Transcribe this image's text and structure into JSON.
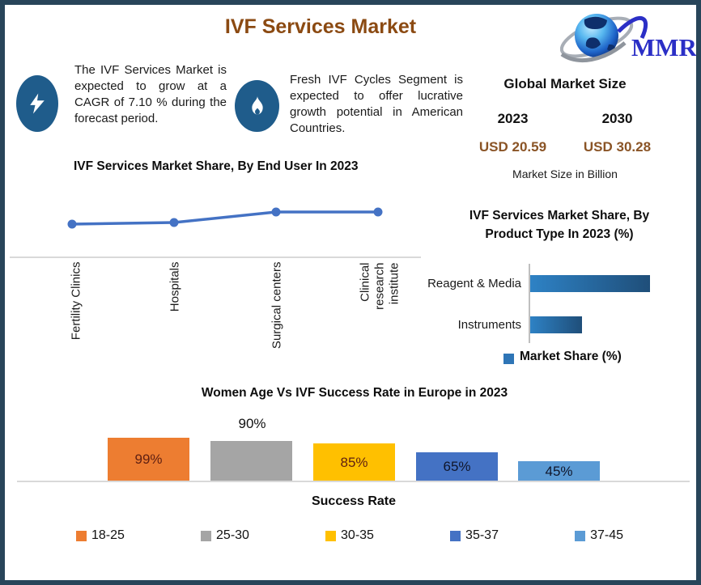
{
  "colors": {
    "border": "#28455A",
    "title_brown": "#8B4A12",
    "usd_value_brown": "#8A5426",
    "callout_icon_bg": "#1F5C8B",
    "line_blue": "#4472C4",
    "product_bar_gradient_start": "#2E82C5",
    "product_bar_gradient_end": "#1F4E79",
    "product_legend_square": "#2E75B6",
    "axis_gray": "#D9D9D9",
    "logo_blue": "#2B2FC6"
  },
  "header": {
    "title": "IVF Services Market",
    "logo": {
      "text": "MMR",
      "icon": "globe-swoosh-logo"
    }
  },
  "callouts": [
    {
      "icon": "lightning-icon",
      "text": "The IVF Services Market is expected to grow at a CAGR of 7.10 % during the forecast period."
    },
    {
      "icon": "flame-icon",
      "text": "Fresh IVF Cycles Segment is expected to offer lucrative growth potential in American Countries."
    }
  ],
  "market_size": {
    "heading": "Global Market Size",
    "columns": [
      {
        "year": "2023",
        "value": "USD 20.59"
      },
      {
        "year": "2030",
        "value": "USD 30.28"
      }
    ],
    "caption": "Market Size in Billion"
  },
  "end_user_chart": {
    "title": "IVF Services Market Share, By End User In 2023",
    "categories": [
      "Fertility Clinics",
      "Hospitals",
      "Surgical centers",
      "Clinical research institute"
    ]
  },
  "product_chart": {
    "title": "IVF Services Market Share, By Product Type In 2023 (%)",
    "bars": [
      {
        "label": "Reagent & Media",
        "value": 70
      },
      {
        "label": "Instruments",
        "value": 30
      }
    ],
    "legend_label": "Market Share (%)"
  },
  "age_chart": {
    "title": "Women Age Vs IVF Success Rate in Europe in 2023",
    "xlabel": "Success Rate",
    "bars": [
      {
        "age_group": "18-25",
        "label": "99%",
        "value": 99,
        "color": "#ED7D31",
        "label_color": "#5E1F12",
        "label_position": "inside"
      },
      {
        "age_group": "25-30",
        "label": "90%",
        "value": 90,
        "color": "#A5A5A5",
        "label_color": "#111111",
        "label_position": "above"
      },
      {
        "age_group": "30-35",
        "label": "85%",
        "value": 85,
        "color": "#FFC000",
        "label_color": "#5E1F12",
        "label_position": "inside"
      },
      {
        "age_group": "35-37",
        "label": "65%",
        "value": 65,
        "color": "#4472C4",
        "label_color": "#10162B",
        "label_position": "inside"
      },
      {
        "age_group": "37-45",
        "label": "45%",
        "value": 45,
        "color": "#5B9BD5",
        "label_color": "#10162B",
        "label_position": "inside"
      }
    ]
  },
  "chart_data": [
    {
      "type": "line",
      "title": "IVF Services Market Share, By End User In 2023",
      "categories": [
        "Fertility Clinics",
        "Hospitals",
        "Surgical centers",
        "Clinical research institute"
      ],
      "values": [
        30,
        31,
        38,
        38
      ],
      "estimated": true,
      "xlabel": "",
      "ylabel": "",
      "grid": false,
      "legend_position": "none"
    },
    {
      "type": "bar",
      "orientation": "horizontal",
      "title": "IVF Services Market Share, By Product Type In 2023 (%)",
      "categories": [
        "Reagent & Media",
        "Instruments"
      ],
      "values": [
        70,
        30
      ],
      "estimated": true,
      "legend": [
        "Market Share (%)"
      ],
      "legend_position": "bottom"
    },
    {
      "type": "bar",
      "title": "Women Age Vs IVF Success Rate in Europe in 2023",
      "categories": [
        "18-25",
        "25-30",
        "30-35",
        "35-37",
        "37-45"
      ],
      "values": [
        99,
        90,
        85,
        65,
        45
      ],
      "data_labels": [
        "99%",
        "90%",
        "85%",
        "65%",
        "45%"
      ],
      "xlabel": "Success Rate",
      "ylim": [
        0,
        110
      ],
      "legend_position": "bottom"
    }
  ]
}
